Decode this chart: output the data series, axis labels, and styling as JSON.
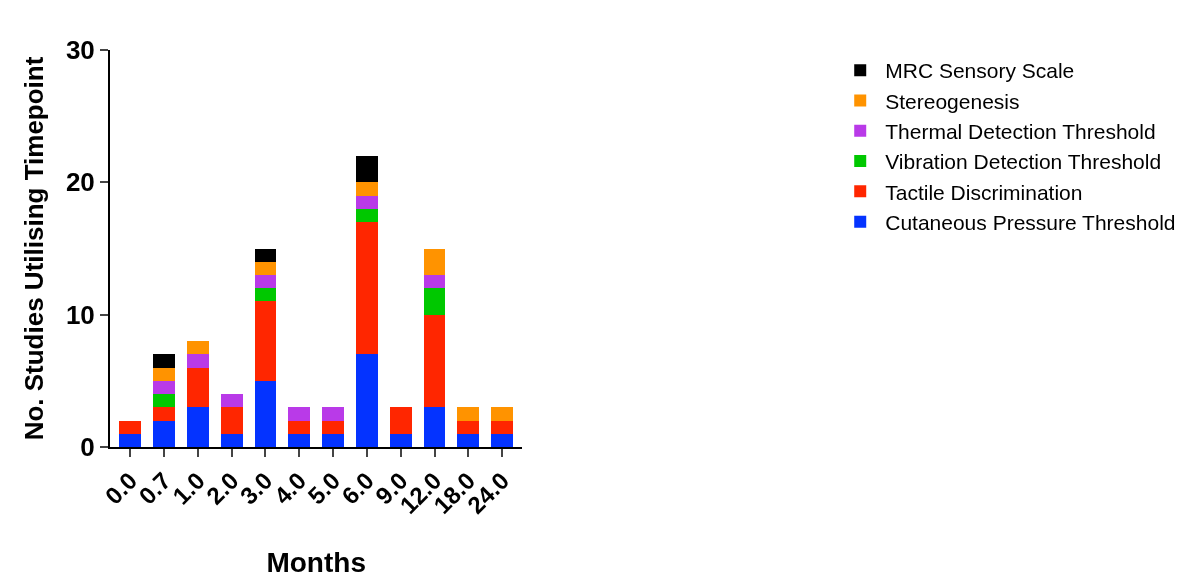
{
  "chart_data": {
    "type": "bar",
    "stacked": true,
    "xlabel": "Months",
    "ylabel": "No. Studies Utilising Timepoint",
    "categories": [
      "0.0",
      "0.7",
      "1.0",
      "2.0",
      "3.0",
      "4.0",
      "5.0",
      "6.0",
      "9.0",
      "12.0",
      "18.0",
      "24.0"
    ],
    "series": [
      {
        "name": "Cutaneous Pressure Threshold",
        "color": "#0433ff",
        "values": [
          1,
          2,
          3,
          1,
          5,
          1,
          1,
          7,
          1,
          3,
          1,
          1
        ]
      },
      {
        "name": "Tactile Discrimination",
        "color": "#ff2600",
        "values": [
          1,
          1,
          3,
          2,
          6,
          1,
          1,
          10,
          2,
          7,
          1,
          1
        ]
      },
      {
        "name": "Vibration Detection Threshold",
        "color": "#00c800",
        "values": [
          0,
          1,
          0,
          0,
          1,
          0,
          0,
          1,
          0,
          2,
          0,
          0
        ]
      },
      {
        "name": "Thermal Detection Threshold",
        "color": "#b93ae8",
        "values": [
          0,
          1,
          1,
          1,
          1,
          1,
          1,
          1,
          0,
          1,
          0,
          0
        ]
      },
      {
        "name": "Stereogenesis",
        "color": "#ff9300",
        "values": [
          0,
          1,
          1,
          0,
          1,
          0,
          0,
          1,
          0,
          2,
          1,
          1
        ]
      },
      {
        "name": "MRC Sensory Scale",
        "color": "#000000",
        "values": [
          0,
          1,
          0,
          0,
          1,
          0,
          0,
          2,
          0,
          0,
          0,
          0
        ]
      }
    ],
    "ylim": [
      0,
      30
    ],
    "yticks": [
      0,
      10,
      20,
      30
    ],
    "grid": false,
    "legend": "right"
  }
}
